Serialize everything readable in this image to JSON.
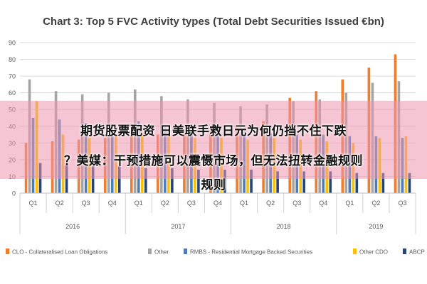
{
  "chart_data": {
    "type": "bar",
    "title": "Chart 3: Top 5 FVC Activity types (Total Debt Securities Issued €bn)",
    "xlabel": "",
    "ylabel": "",
    "ylim": [
      0,
      90
    ],
    "yticks": [
      0,
      10,
      20,
      30,
      40,
      50,
      60,
      70,
      80,
      90
    ],
    "grid": true,
    "legend_position": "bottom",
    "categories": [
      "Q1",
      "Q2",
      "Q3",
      "Q4",
      "Q1",
      "Q2",
      "Q3",
      "Q4",
      "Q1",
      "Q2",
      "Q3",
      "Q4",
      "Q1",
      "Q2",
      "Q3"
    ],
    "years": [
      {
        "label": "2016",
        "quarters": 4
      },
      {
        "label": "2017",
        "quarters": 4
      },
      {
        "label": "2018",
        "quarters": 4
      },
      {
        "label": "2019",
        "quarters": 3
      }
    ],
    "series": [
      {
        "name": "CLO - Collateralised Loan Obligations",
        "color": "#ED7D31",
        "values": [
          30,
          31,
          32,
          33,
          34,
          35,
          36,
          38,
          40,
          43,
          57,
          61,
          68,
          75,
          83
        ]
      },
      {
        "name": "Other",
        "color": "#A5A5A5",
        "values": [
          68,
          61,
          59,
          60,
          62,
          58,
          56,
          54,
          52,
          53,
          55,
          56,
          60,
          66,
          67
        ]
      },
      {
        "name": "RMBS - Residential Mortgage Backed Securities",
        "color": "#4A7EBB",
        "values": [
          45,
          44,
          42,
          41,
          43,
          40,
          39,
          38,
          37,
          36,
          35,
          35,
          34,
          34,
          33
        ]
      },
      {
        "name": "Other CDO",
        "color": "#FFC000",
        "values": [
          55,
          35,
          33,
          34,
          36,
          34,
          33,
          33,
          32,
          33,
          32,
          31,
          30,
          33,
          34
        ]
      },
      {
        "name": "ABCP",
        "color": "#264478",
        "values": [
          18,
          17,
          16,
          16,
          15,
          15,
          14,
          14,
          14,
          13,
          13,
          13,
          12,
          12,
          12
        ]
      }
    ]
  },
  "overlay": {
    "line1": "期货股票配资 日美联手救日元为何仍挡不住下跌",
    "line2": "？美媒：干预措施可以震慑市场，但无法扭转金融规则",
    "line3": "规则"
  }
}
